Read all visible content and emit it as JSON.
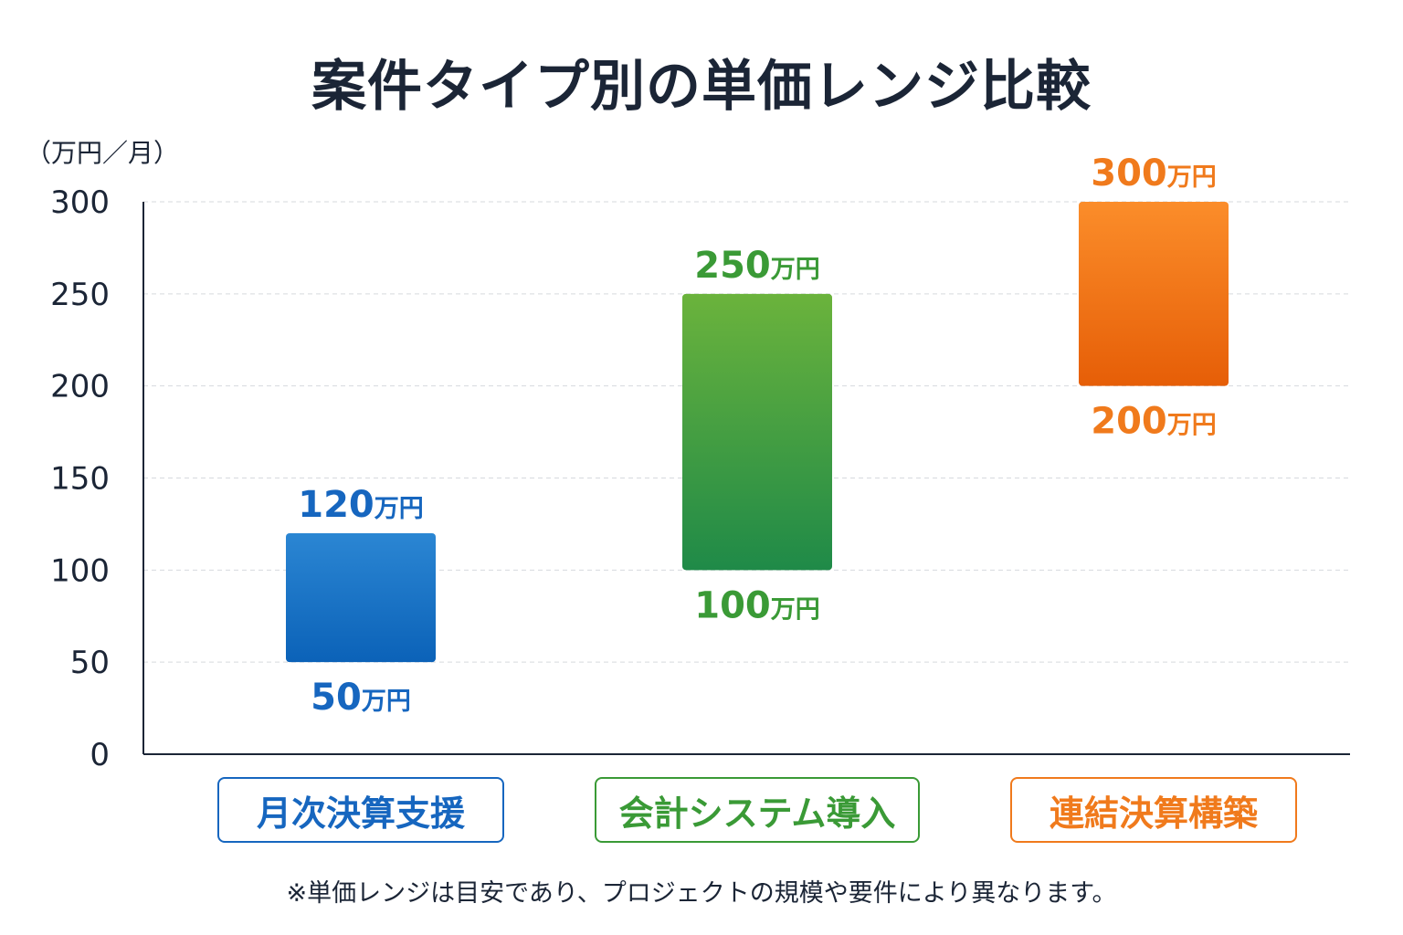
{
  "chart_data": {
    "type": "bar",
    "title": "案件タイプ別の単価レンジ比較",
    "ylabel": "（万円／月）",
    "ylim": [
      0,
      300
    ],
    "yticks": [
      0,
      50,
      100,
      150,
      200,
      250,
      300
    ],
    "grid": true,
    "categories": [
      "月次決算支援",
      "会計システム導入",
      "連結決算構築"
    ],
    "series": [
      {
        "color_top": "#2b86d3",
        "color_bottom": "#0b62b8",
        "text_color": "#1666bf",
        "low": 50,
        "high": 120,
        "low_label": "50",
        "high_label": "120",
        "unit_suffix": "万円"
      },
      {
        "color_top": "#6bb33c",
        "color_bottom": "#1f8a48",
        "text_color": "#3a9a36",
        "low": 100,
        "high": 250,
        "low_label": "100",
        "high_label": "250",
        "unit_suffix": "万円"
      },
      {
        "color_top": "#fb8d2a",
        "color_bottom": "#e65e07",
        "text_color": "#f07a1c",
        "low": 200,
        "high": 300,
        "low_label": "200",
        "high_label": "300",
        "unit_suffix": "万円"
      }
    ],
    "note": "※単価レンジは目安であり、プロジェクトの規模や要件により異なります。"
  }
}
